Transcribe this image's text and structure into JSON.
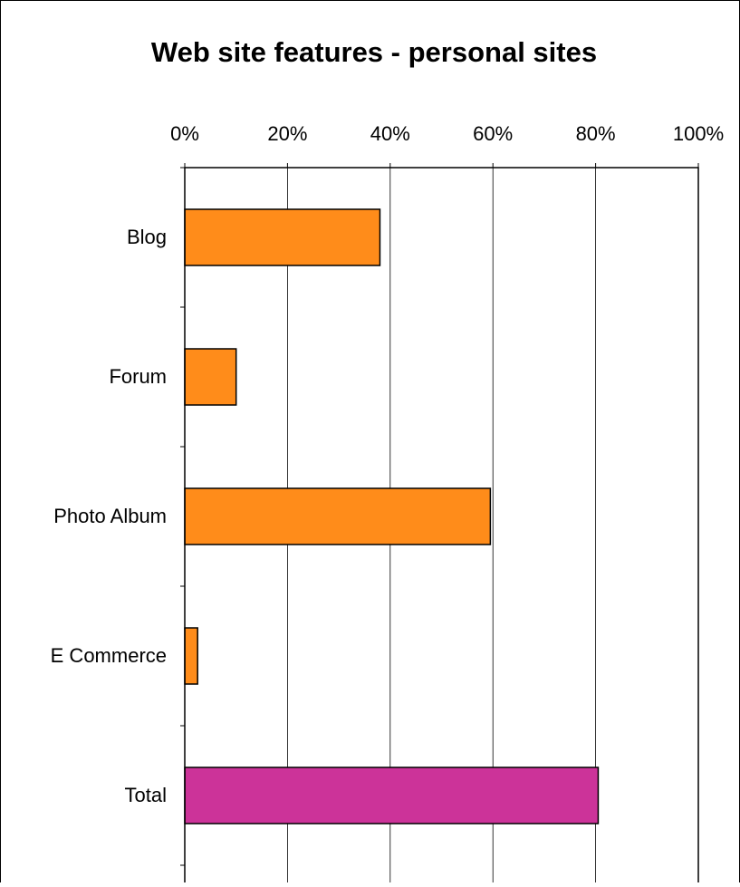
{
  "chart_data": {
    "type": "bar",
    "orientation": "horizontal",
    "title": "Web site features - personal sites",
    "xlabel": "",
    "ylabel": "",
    "categories": [
      "Blog",
      "Forum",
      "Photo Album",
      "E Commerce",
      "Total"
    ],
    "values": [
      38,
      10,
      59.5,
      2.5,
      80.5
    ],
    "bar_colors": [
      "#ff8c1a",
      "#ff8c1a",
      "#ff8c1a",
      "#ff8c1a",
      "#cc3399"
    ],
    "xlim": [
      0,
      100
    ],
    "x_ticks": [
      0,
      20,
      40,
      60,
      80,
      100
    ],
    "x_tick_labels": [
      "0%",
      "20%",
      "40%",
      "60%",
      "80%",
      "100%"
    ],
    "x_axis_position": "top",
    "grid": true,
    "legend": "none"
  }
}
